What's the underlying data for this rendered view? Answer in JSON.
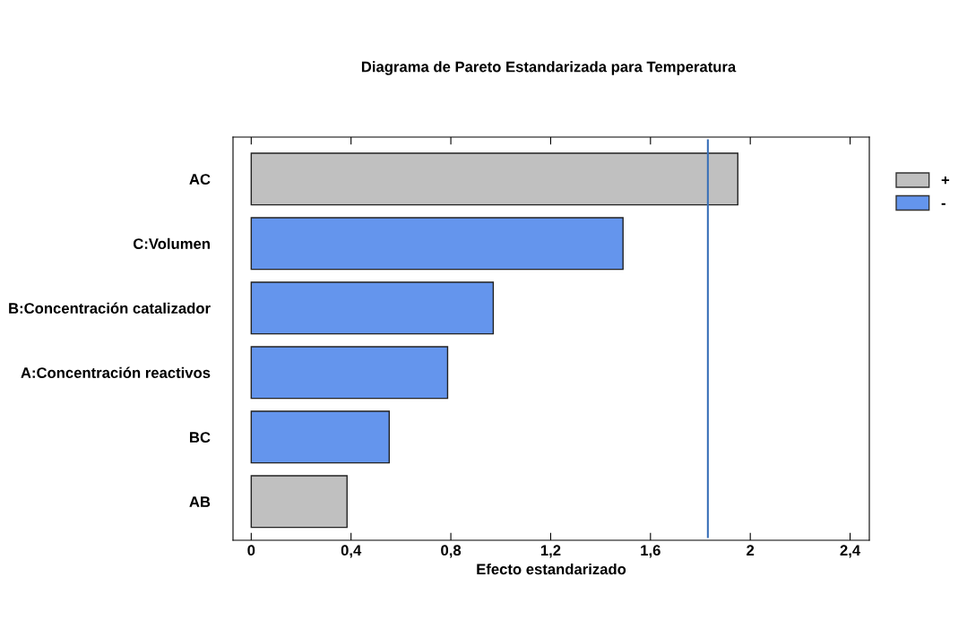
{
  "chart_data": {
    "type": "bar",
    "orientation": "horizontal",
    "title": "Diagrama de Pareto Estandarizada para Temperatura",
    "xlabel": "Efecto estandarizado",
    "categories": [
      "AC",
      "C:Volumen",
      "B:Concentración catalizador",
      "A:Concentración reactivos",
      "BC",
      "AB"
    ],
    "series": [
      {
        "name": "+",
        "color": "#c0c0c0",
        "values": [
          1.95,
          null,
          null,
          null,
          null,
          0.384
        ]
      },
      {
        "name": "-",
        "color": "#6495ed",
        "values": [
          null,
          1.49,
          0.97,
          0.787,
          0.553,
          null
        ]
      }
    ],
    "xlim": [
      -0.073,
      2.477
    ],
    "xticks": [
      0,
      {
        "value": 0.4,
        "label": "0,4"
      },
      {
        "value": 0.8,
        "label": "0,8"
      },
      {
        "value": 1.2,
        "label": "1,2"
      },
      {
        "value": 1.6,
        "label": "1,6"
      },
      2,
      {
        "value": 2.4,
        "label": "2,4"
      }
    ],
    "ref_lines": [
      {
        "axis": "x",
        "value": 1.83,
        "color": "#3a70b8"
      }
    ],
    "legend": "top right",
    "grid": false
  }
}
